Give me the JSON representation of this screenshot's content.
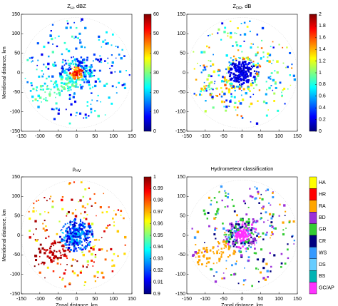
{
  "chart_data": [
    {
      "type": "heatmap",
      "title_parts": [
        "Z",
        "H",
        ", dBZ"
      ],
      "y_label": "Meridional distance, km",
      "xlim": [
        -150,
        150
      ],
      "ylim": [
        -150,
        150
      ],
      "xticks": [
        -150,
        -100,
        -50,
        0,
        50,
        100,
        150
      ],
      "yticks": [
        -150,
        -100,
        -50,
        0,
        50,
        100,
        150
      ],
      "colorbar": {
        "lim": [
          0,
          60
        ],
        "ticks": [
          0,
          10,
          20,
          30,
          40,
          50,
          60
        ],
        "colormap": "jet"
      }
    },
    {
      "type": "heatmap",
      "title_parts": [
        "Z",
        "DR",
        ", dB"
      ],
      "xlim": [
        -150,
        150
      ],
      "ylim": [
        -150,
        150
      ],
      "xticks": [
        -150,
        -100,
        -50,
        0,
        50,
        100,
        150
      ],
      "yticks": [
        -150,
        -100,
        -50,
        0,
        50,
        100,
        150
      ],
      "colorbar": {
        "lim": [
          0,
          2
        ],
        "ticks": [
          0,
          0.2,
          0.4,
          0.6,
          0.8,
          1,
          1.2,
          1.4,
          1.6,
          1.8,
          2
        ],
        "colormap": "jet"
      }
    },
    {
      "type": "heatmap",
      "title_parts": [
        "ρ",
        "HV"
      ],
      "y_label": "Meridional distance, km",
      "x_label": "Zonal distance, km",
      "xlim": [
        -150,
        150
      ],
      "ylim": [
        -150,
        150
      ],
      "xticks": [
        -150,
        -100,
        -50,
        0,
        50,
        100,
        150
      ],
      "yticks": [
        -150,
        -100,
        -50,
        0,
        50,
        100,
        150
      ],
      "colorbar": {
        "lim": [
          0.9,
          1
        ],
        "ticks": [
          0.9,
          0.91,
          0.92,
          0.93,
          0.94,
          0.95,
          0.96,
          0.97,
          0.98,
          0.99,
          1
        ],
        "colormap": "jet"
      }
    },
    {
      "type": "classification",
      "title": "Hydrometeor classification",
      "x_label": "Zonal distance, km",
      "xlim": [
        -150,
        150
      ],
      "ylim": [
        -150,
        150
      ],
      "xticks": [
        -150,
        -100,
        -50,
        0,
        50,
        100,
        150
      ],
      "yticks": [
        -150,
        -100,
        -50,
        0,
        50,
        100,
        150
      ],
      "classes": [
        {
          "name": "HA",
          "color": "#ffff00"
        },
        {
          "name": "HR",
          "color": "#ff0000"
        },
        {
          "name": "RA",
          "color": "#ffa500"
        },
        {
          "name": "BD",
          "color": "#9b30d9"
        },
        {
          "name": "GR",
          "color": "#33cc33"
        },
        {
          "name": "CR",
          "color": "#000080"
        },
        {
          "name": "WS",
          "color": "#3399ff"
        },
        {
          "name": "DS",
          "color": "#66ccff"
        },
        {
          "name": "BS",
          "color": "#00b3b3"
        },
        {
          "name": "GC/AP",
          "color": "#ff33ff"
        }
      ]
    }
  ]
}
